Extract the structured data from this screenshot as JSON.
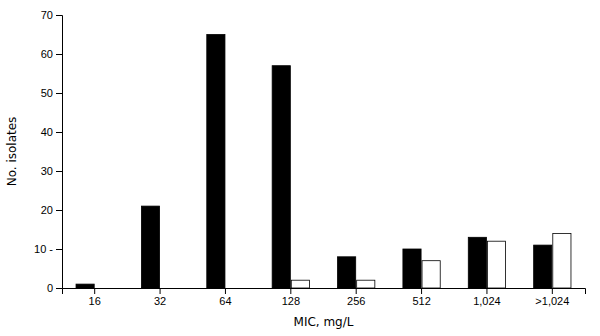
{
  "chart_data": {
    "type": "bar",
    "categories": [
      "16",
      "32",
      "64",
      "128",
      "256",
      "512",
      "1,024",
      ">1,024"
    ],
    "series": [
      {
        "color": "#000000",
        "values": [
          1,
          21,
          65,
          57,
          8,
          10,
          13,
          11
        ]
      },
      {
        "color": "#ffffff",
        "values": [
          0,
          0,
          0,
          2,
          2,
          7,
          12,
          14
        ]
      }
    ],
    "xlabel": "MIC, mg/L",
    "ylabel": "No. isolates",
    "ylim": [
      0,
      70
    ],
    "yticks": [
      0,
      {
        "value": 10,
        "label": "10 -"
      },
      20,
      30,
      40,
      50,
      60,
      70
    ],
    "grid": false
  }
}
